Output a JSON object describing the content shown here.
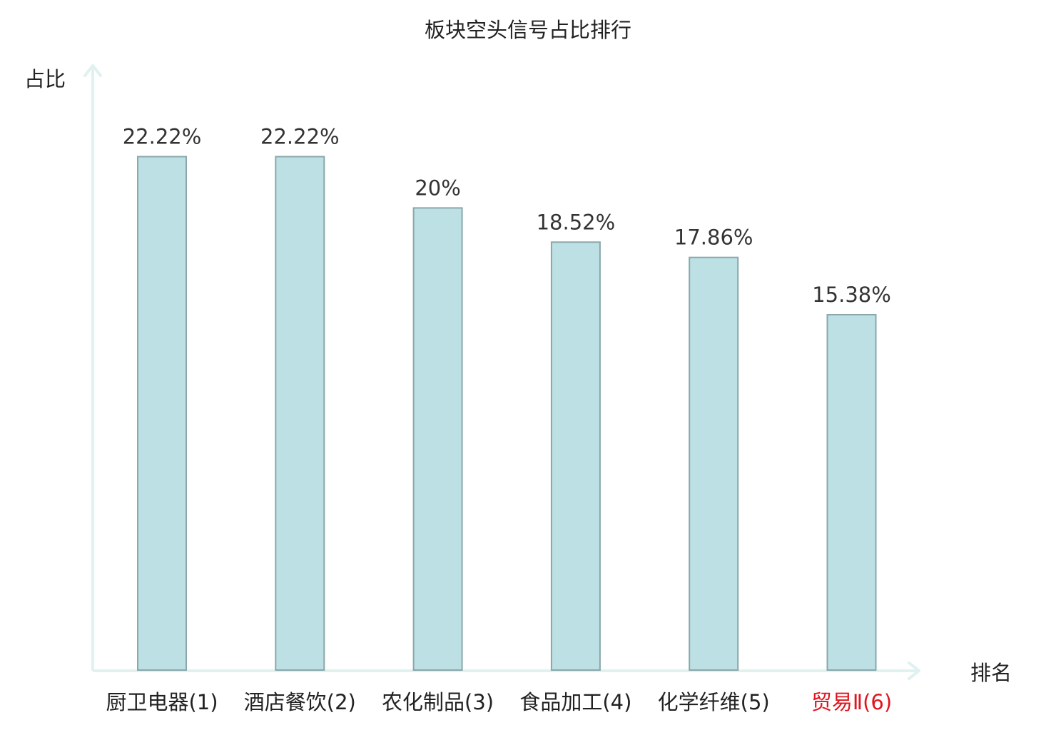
{
  "chart_data": {
    "type": "bar",
    "title": "板块空头信号占比排行",
    "ylabel": "占比",
    "xlabel": "排名",
    "categories": [
      "厨卫电器(1)",
      "酒店餐饮(2)",
      "农化制品(3)",
      "食品加工(4)",
      "化学纤维(5)",
      "贸易Ⅱ(6)"
    ],
    "values": [
      22.22,
      22.22,
      20,
      18.52,
      17.86,
      15.38
    ],
    "value_labels": [
      "22.22%",
      "22.22%",
      "20%",
      "18.52%",
      "17.86%",
      "15.38%"
    ],
    "highlight_index": 5,
    "ylim": [
      0,
      29
    ],
    "grid": false,
    "legend": "none"
  },
  "colors": {
    "bar_fill": "#bce0e3",
    "bar_stroke": "#8aa7ab",
    "axis": "#e0f2f0",
    "text": "#333333",
    "label_text": "#222222",
    "highlight_text": "#e0141e"
  }
}
